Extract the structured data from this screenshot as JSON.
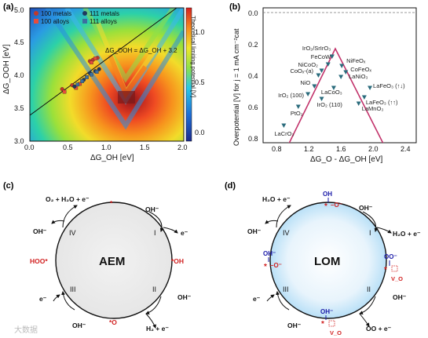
{
  "panel_a": {
    "label": "(a)",
    "xlabel": "ΔG_OH [eV]",
    "ylabel": "ΔG_OOH [eV]",
    "colorbar_label": "Theoretical limiting potential [V]",
    "scaling_relation": "ΔG_OOH = ΔG_OH + 3.2",
    "legend": [
      "100 metals",
      "100 alloys",
      "111 metals",
      "111 alloys"
    ],
    "x_ticks": [
      "0.0",
      "0.5",
      "1.0",
      "1.5",
      "2.0"
    ],
    "y_ticks": [
      "3.0",
      "3.5",
      "4.0",
      "4.5",
      "5.0"
    ],
    "cb_ticks": [
      "0.0",
      "0.5",
      "1.0"
    ],
    "colors": {
      "m100": "#c0392b",
      "a100": "#e74c3c",
      "m111": "#1f3a5f",
      "a111": "#3d6fa0"
    }
  },
  "panel_b": {
    "label": "(b)",
    "xlabel": "ΔG_O - ΔG_OH [eV]",
    "ylabel": "Overpotential [V] for j = 1 mA cm⁻²cat",
    "x_ticks": [
      "0.8",
      "1.2",
      "1.6",
      "2.0",
      "2.4"
    ],
    "y_ticks": [
      "0.0",
      "0.2",
      "0.4",
      "0.6",
      "0.8"
    ],
    "catalysts": [
      "IrO₂/SrIrO₃",
      "FeCoW",
      "NiCoO₂",
      "CoOₓ-(a)",
      "NiO",
      "IrO₂ (100)",
      "PtO₂",
      "LaCrO₃",
      "IrO₂ (110)",
      "NiFeOₓ",
      "CoFeOₓ",
      "LaNiO₃",
      "LaCoO₃",
      "LaFeO₃ (↑↓)",
      "LaFeO₃ (↑↑)",
      "LaMnO₃"
    ]
  },
  "panel_c": {
    "label": "(c)",
    "center": "AEM",
    "steps": [
      "I",
      "II",
      "III",
      "IV"
    ],
    "top_left_products": "O₂ + H₂O + e⁻",
    "hydroxide": "OH⁻",
    "electron": "e⁻",
    "bottom_right_products": "H₂ + e⁻",
    "intermediates": [
      "*",
      "*OH",
      "*O",
      "HOO*"
    ]
  },
  "panel_d": {
    "label": "(d)",
    "center": "LOM",
    "steps": [
      "I",
      "II",
      "III",
      "IV"
    ],
    "top_left_products": "H₂O + e⁻",
    "right_products": "H₂O + e⁻",
    "bottom_products": "OO + e⁻",
    "hydroxide": "OH⁻",
    "electron": "e⁻",
    "vacancy": "V_O"
  },
  "watermark": "大数据",
  "chart_data": [
    {
      "type": "heatmap",
      "title": "",
      "xlabel": "ΔG_OH [eV]",
      "ylabel": "ΔG_OOH [eV]",
      "xlim": [
        0.0,
        2.0
      ],
      "ylim": [
        3.0,
        5.0
      ],
      "colorbar": {
        "label": "Theoretical limiting potential [V]",
        "range": [
          0.0,
          1.25
        ]
      },
      "scaling_line": {
        "slope": 1,
        "intercept": 3.2
      },
      "series": [
        {
          "name": "100 metals",
          "x": [
            0.42,
            0.55,
            0.78,
            0.82,
            0.88
          ],
          "y": [
            3.78,
            3.84,
            4.2,
            4.22,
            4.25
          ]
        },
        {
          "name": "100 alloys",
          "x": [
            0.45,
            0.6,
            0.65,
            0.8,
            0.85
          ],
          "y": [
            3.74,
            3.8,
            3.86,
            4.18,
            4.24
          ]
        },
        {
          "name": "111 metals",
          "x": [
            0.58,
            0.7,
            0.78,
            0.85,
            0.9
          ],
          "y": [
            3.82,
            3.92,
            4.02,
            4.05,
            4.08
          ]
        },
        {
          "name": "111 alloys",
          "x": [
            0.62,
            0.68,
            0.74,
            0.8,
            0.87
          ],
          "y": [
            3.85,
            3.9,
            3.96,
            4.0,
            4.04
          ]
        }
      ]
    },
    {
      "type": "scatter",
      "title": "",
      "xlabel": "ΔG_O - ΔG_OH [eV]",
      "ylabel": "Overpotential [V] for j = 1 mA cm⁻²cat",
      "xlim": [
        0.6,
        2.7
      ],
      "ylim": [
        0.85,
        -0.02
      ],
      "volcano": {
        "apex": [
          1.59,
          0.23
        ],
        "left_end": [
          1.0,
          0.85
        ],
        "right_end": [
          2.2,
          0.85
        ]
      },
      "points": [
        {
          "label": "IrO₂/SrIrO₃",
          "x": 1.55,
          "y": 0.28
        },
        {
          "label": "FeCoW",
          "x": 1.5,
          "y": 0.33
        },
        {
          "label": "NiCoO₂",
          "x": 1.42,
          "y": 0.37
        },
        {
          "label": "CoOₓ-(a)",
          "x": 1.38,
          "y": 0.4
        },
        {
          "label": "NiO",
          "x": 1.33,
          "y": 0.47
        },
        {
          "label": "IrO₂ (100)",
          "x": 1.25,
          "y": 0.52
        },
        {
          "label": "PtO₂",
          "x": 1.13,
          "y": 0.6
        },
        {
          "label": "LaCrO₃",
          "x": 0.95,
          "y": 0.72
        },
        {
          "label": "IrO₂ (110)",
          "x": 1.42,
          "y": 0.55
        },
        {
          "label": "NiFeOₓ",
          "x": 1.67,
          "y": 0.34
        },
        {
          "label": "CoFeOₓ",
          "x": 1.72,
          "y": 0.38
        },
        {
          "label": "LaNiO₃",
          "x": 1.66,
          "y": 0.41
        },
        {
          "label": "LaCoO₃",
          "x": 1.57,
          "y": 0.48
        },
        {
          "label": "LaFeO₃ (↑↓)",
          "x": 2.02,
          "y": 0.48
        },
        {
          "label": "LaFeO₃ (↑↑)",
          "x": 1.95,
          "y": 0.54
        },
        {
          "label": "LaMnO₃",
          "x": 1.88,
          "y": 0.58
        }
      ]
    }
  ]
}
